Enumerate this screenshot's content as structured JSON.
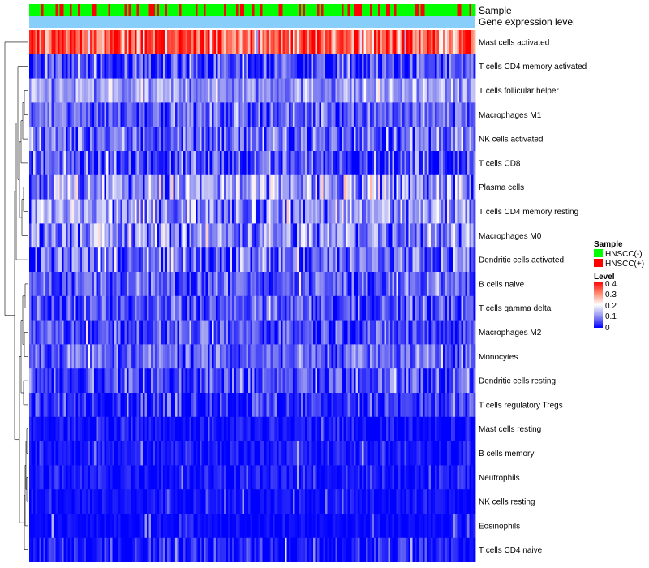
{
  "chart_data": {
    "type": "heatmap",
    "title": "",
    "annotation_tracks": [
      {
        "key": "sample",
        "label": "Sample"
      },
      {
        "key": "gene",
        "label": "Gene expression level"
      }
    ],
    "rows": [
      {
        "name": "Mast cells activated",
        "mean": 0.33,
        "sd": 0.07
      },
      {
        "name": "T cells CD4 memory activated",
        "mean": 0.04,
        "sd": 0.05
      },
      {
        "name": "T cells follicular helper",
        "mean": 0.11,
        "sd": 0.04
      },
      {
        "name": "Macrophages M1",
        "mean": 0.07,
        "sd": 0.04
      },
      {
        "name": "NK cells activated",
        "mean": 0.07,
        "sd": 0.05
      },
      {
        "name": "T cells CD8",
        "mean": 0.05,
        "sd": 0.05
      },
      {
        "name": "Plasma cells",
        "mean": 0.11,
        "sd": 0.07
      },
      {
        "name": "T cells CD4 memory resting",
        "mean": 0.11,
        "sd": 0.06
      },
      {
        "name": "Macrophages M0",
        "mean": 0.1,
        "sd": 0.06
      },
      {
        "name": "Dendritic cells activated",
        "mean": 0.07,
        "sd": 0.06
      },
      {
        "name": "B cells naive",
        "mean": 0.06,
        "sd": 0.04
      },
      {
        "name": "T cells gamma delta",
        "mean": 0.05,
        "sd": 0.04
      },
      {
        "name": "Macrophages M2",
        "mean": 0.05,
        "sd": 0.04
      },
      {
        "name": "Monocytes",
        "mean": 0.07,
        "sd": 0.04
      },
      {
        "name": "Dendritic cells resting",
        "mean": 0.05,
        "sd": 0.05
      },
      {
        "name": "T cells regulatory  Tregs",
        "mean": 0.03,
        "sd": 0.04
      },
      {
        "name": "Mast cells resting",
        "mean": 0.01,
        "sd": 0.02
      },
      {
        "name": "B cells memory",
        "mean": 0.015,
        "sd": 0.02
      },
      {
        "name": "Neutrophils",
        "mean": 0.015,
        "sd": 0.02
      },
      {
        "name": "NK cells resting",
        "mean": 0.01,
        "sd": 0.015
      },
      {
        "name": "Eosinophils",
        "mean": 0.005,
        "sd": 0.01
      },
      {
        "name": "T cells CD4 naive",
        "mean": 0.015,
        "sd": 0.03
      }
    ],
    "n_samples": 220,
    "value_range": [
      0,
      0.4
    ],
    "color_scale": [
      {
        "value": 0,
        "color": "#0000ff"
      },
      {
        "value": 0.1,
        "color": "#9090f0"
      },
      {
        "value": 0.2,
        "color": "#ffffff"
      },
      {
        "value": 0.3,
        "color": "#ff8a70"
      },
      {
        "value": 0.4,
        "color": "#ff0000"
      }
    ],
    "sample_groups": [
      {
        "label": "HNSCC(-)",
        "color": "#00ff00"
      },
      {
        "label": "HNSCC(+)",
        "color": "#ff0000"
      }
    ],
    "gene_track_color": "#87cefa",
    "legend_sample": {
      "title": "Sample",
      "items": [
        "HNSCC(-)",
        "HNSCC(+)"
      ]
    },
    "legend_level": {
      "title": "Level",
      "ticks": [
        "0.4",
        "0.3",
        "0.2",
        "0.1",
        "0"
      ]
    },
    "dendrogram": "row clustering tree (left side)"
  }
}
